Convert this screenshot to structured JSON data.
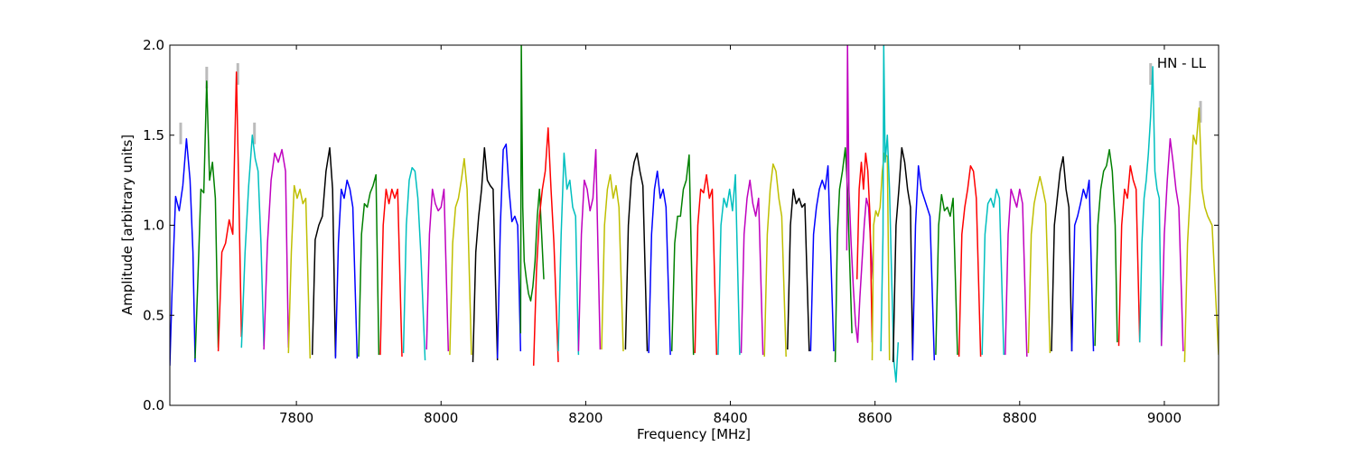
{
  "chart_data": {
    "type": "line",
    "title": "",
    "xlabel": "Frequency [MHz]",
    "ylabel": "Amplitude [arbitrary units]",
    "annotation": "HN - LL",
    "xlim": [
      7625,
      9075
    ],
    "ylim": [
      0.0,
      2.0
    ],
    "xticks": [
      7800,
      8000,
      8200,
      8400,
      8600,
      8800,
      9000
    ],
    "yticks": [
      0.0,
      0.5,
      1.0,
      1.5,
      2.0
    ],
    "xtick_labels": [
      "7800",
      "8000",
      "8200",
      "8400",
      "8600",
      "8800",
      "9000"
    ],
    "ytick_labels": [
      "0.0",
      "0.5",
      "1.0",
      "1.5",
      "2.0"
    ],
    "grid": false,
    "legend": "none",
    "background_trace_color": "#bbbbbb",
    "color_cycle": [
      "#0000ff",
      "#008000",
      "#ff0000",
      "#00bfbf",
      "#bf00bf",
      "#bfbf00",
      "#000000"
    ],
    "series": [
      {
        "color": "#0000ff",
        "x": [
          7625,
          7628,
          7633,
          7638,
          7643,
          7648,
          7653,
          7657,
          7660
        ],
        "y": [
          0.22,
          0.62,
          1.16,
          1.08,
          1.22,
          1.48,
          1.25,
          0.85,
          0.24
        ]
      },
      {
        "color": "#008000",
        "x": [
          7660,
          7664,
          7668,
          7672,
          7676,
          7680,
          7684,
          7688,
          7692
        ],
        "y": [
          0.26,
          0.72,
          1.2,
          1.18,
          1.8,
          1.25,
          1.35,
          1.15,
          0.32
        ]
      },
      {
        "color": "#ff0000",
        "x": [
          7692,
          7697,
          7702,
          7707,
          7712,
          7717,
          7720,
          7724
        ],
        "y": [
          0.3,
          0.85,
          0.9,
          1.03,
          0.95,
          1.85,
          1.25,
          0.38
        ]
      },
      {
        "color": "#00bfbf",
        "x": [
          7724,
          7729,
          7734,
          7739,
          7743,
          7747,
          7751,
          7755
        ],
        "y": [
          0.32,
          0.85,
          1.22,
          1.5,
          1.37,
          1.3,
          0.9,
          0.33
        ]
      },
      {
        "color": "#bf00bf",
        "x": [
          7755,
          7760,
          7765,
          7770,
          7775,
          7780,
          7785,
          7789
        ],
        "y": [
          0.31,
          0.9,
          1.25,
          1.4,
          1.35,
          1.42,
          1.3,
          0.32
        ]
      },
      {
        "color": "#bfbf00",
        "x": [
          7789,
          7793,
          7797,
          7801,
          7805,
          7809,
          7813,
          7819
        ],
        "y": [
          0.29,
          0.85,
          1.22,
          1.15,
          1.2,
          1.12,
          1.15,
          0.26
        ]
      },
      {
        "color": "#000000",
        "x": [
          7822,
          7826,
          7831,
          7836,
          7841,
          7846,
          7850,
          7854
        ],
        "y": [
          0.28,
          0.92,
          1.0,
          1.05,
          1.3,
          1.43,
          1.2,
          0.27
        ]
      },
      {
        "color": "#0000ff",
        "x": [
          7854,
          7858,
          7862,
          7866,
          7870,
          7874,
          7878,
          7884
        ],
        "y": [
          0.26,
          0.9,
          1.2,
          1.15,
          1.25,
          1.2,
          1.1,
          0.26
        ]
      },
      {
        "color": "#008000",
        "x": [
          7886,
          7890,
          7894,
          7898,
          7902,
          7906,
          7910,
          7914
        ],
        "y": [
          0.27,
          0.95,
          1.12,
          1.1,
          1.18,
          1.22,
          1.28,
          0.28
        ]
      },
      {
        "color": "#ff0000",
        "x": [
          7916,
          7920,
          7924,
          7928,
          7932,
          7936,
          7940,
          7946
        ],
        "y": [
          0.28,
          1.0,
          1.2,
          1.12,
          1.2,
          1.15,
          1.2,
          0.27
        ]
      },
      {
        "color": "#00bfbf",
        "x": [
          7948,
          7952,
          7956,
          7960,
          7964,
          7968,
          7972,
          7978
        ],
        "y": [
          0.29,
          1.0,
          1.25,
          1.32,
          1.3,
          1.15,
          0.85,
          0.25
        ]
      },
      {
        "color": "#bf00bf",
        "x": [
          7980,
          7984,
          7988,
          7992,
          7996,
          8000,
          8004,
          8010
        ],
        "y": [
          0.31,
          0.95,
          1.2,
          1.12,
          1.08,
          1.1,
          1.2,
          0.3
        ]
      },
      {
        "color": "#bfbf00",
        "x": [
          8012,
          8016,
          8020,
          8024,
          8028,
          8032,
          8036,
          8042
        ],
        "y": [
          0.28,
          0.9,
          1.1,
          1.15,
          1.25,
          1.37,
          1.2,
          0.28
        ]
      },
      {
        "color": "#000000",
        "x": [
          8044,
          8048,
          8052,
          8056,
          8060,
          8064,
          8068,
          8072,
          8078
        ],
        "y": [
          0.24,
          0.85,
          1.05,
          1.2,
          1.43,
          1.25,
          1.22,
          1.2,
          0.25
        ]
      },
      {
        "color": "#0000ff",
        "x": [
          8078,
          8082,
          8086,
          8090,
          8094,
          8098,
          8102,
          8106,
          8110
        ],
        "y": [
          0.26,
          1.0,
          1.42,
          1.45,
          1.2,
          1.02,
          1.05,
          1.0,
          0.3
        ]
      },
      {
        "color": "#008000",
        "x": [
          8110,
          8111,
          8113,
          8115,
          8118,
          8121,
          8124,
          8127,
          8130,
          8133,
          8136,
          8139,
          8142
        ],
        "y": [
          0.4,
          2.0,
          1.1,
          0.8,
          0.7,
          0.62,
          0.58,
          0.66,
          0.8,
          1.05,
          1.2,
          0.95,
          0.7
        ]
      },
      {
        "color": "#ff0000",
        "x": [
          8128,
          8132,
          8136,
          8140,
          8144,
          8148,
          8152,
          8156,
          8162
        ],
        "y": [
          0.22,
          0.75,
          1.05,
          1.2,
          1.3,
          1.54,
          1.2,
          0.9,
          0.24
        ]
      },
      {
        "color": "#00bfbf",
        "x": [
          8162,
          8166,
          8170,
          8174,
          8178,
          8182,
          8186,
          8190
        ],
        "y": [
          0.3,
          0.95,
          1.4,
          1.2,
          1.25,
          1.1,
          1.05,
          0.28
        ]
      },
      {
        "color": "#bf00bf",
        "x": [
          8190,
          8194,
          8198,
          8202,
          8206,
          8210,
          8214,
          8220
        ],
        "y": [
          0.3,
          0.95,
          1.25,
          1.2,
          1.08,
          1.15,
          1.42,
          0.31
        ]
      },
      {
        "color": "#bfbf00",
        "x": [
          8222,
          8226,
          8230,
          8234,
          8238,
          8242,
          8246,
          8252
        ],
        "y": [
          0.31,
          1.0,
          1.2,
          1.28,
          1.15,
          1.22,
          1.1,
          0.3
        ]
      },
      {
        "color": "#000000",
        "x": [
          8255,
          8259,
          8263,
          8267,
          8271,
          8275,
          8279,
          8285
        ],
        "y": [
          0.31,
          1.0,
          1.25,
          1.35,
          1.4,
          1.3,
          1.22,
          0.3
        ]
      },
      {
        "color": "#0000ff",
        "x": [
          8287,
          8291,
          8295,
          8299,
          8303,
          8307,
          8311,
          8317
        ],
        "y": [
          0.29,
          0.95,
          1.2,
          1.3,
          1.15,
          1.2,
          1.1,
          0.28
        ]
      },
      {
        "color": "#008000",
        "x": [
          8319,
          8323,
          8327,
          8331,
          8335,
          8339,
          8343,
          8349
        ],
        "y": [
          0.3,
          0.9,
          1.05,
          1.05,
          1.2,
          1.25,
          1.39,
          0.28
        ]
      },
      {
        "color": "#ff0000",
        "x": [
          8351,
          8355,
          8359,
          8363,
          8367,
          8371,
          8375,
          8381
        ],
        "y": [
          0.29,
          1.0,
          1.2,
          1.18,
          1.28,
          1.15,
          1.2,
          0.28
        ]
      },
      {
        "color": "#00bfbf",
        "x": [
          8383,
          8387,
          8391,
          8395,
          8399,
          8403,
          8407,
          8413
        ],
        "y": [
          0.28,
          1.0,
          1.15,
          1.1,
          1.2,
          1.08,
          1.28,
          0.28
        ]
      },
      {
        "color": "#bf00bf",
        "x": [
          8415,
          8419,
          8423,
          8427,
          8431,
          8435,
          8439,
          8445
        ],
        "y": [
          0.29,
          0.95,
          1.15,
          1.25,
          1.12,
          1.05,
          1.15,
          0.28
        ]
      },
      {
        "color": "#bfbf00",
        "x": [
          8447,
          8451,
          8455,
          8459,
          8463,
          8467,
          8471,
          8477
        ],
        "y": [
          0.27,
          0.95,
          1.2,
          1.34,
          1.3,
          1.15,
          1.05,
          0.27
        ]
      },
      {
        "color": "#000000",
        "x": [
          8479,
          8483,
          8487,
          8491,
          8495,
          8499,
          8503,
          8509
        ],
        "y": [
          0.31,
          1.0,
          1.2,
          1.12,
          1.15,
          1.1,
          1.12,
          0.3
        ]
      },
      {
        "color": "#0000ff",
        "x": [
          8511,
          8515,
          8519,
          8523,
          8527,
          8531,
          8535,
          8543
        ],
        "y": [
          0.3,
          0.95,
          1.1,
          1.2,
          1.25,
          1.2,
          1.33,
          0.3
        ]
      },
      {
        "color": "#008000",
        "x": [
          8545,
          8548,
          8551,
          8555,
          8559,
          8562,
          8565,
          8568
        ],
        "y": [
          0.24,
          0.95,
          1.2,
          1.3,
          1.43,
          1.2,
          0.8,
          0.4
        ]
      },
      {
        "color": "#bf00bf",
        "x": [
          8561,
          8562,
          8564,
          8567,
          8570,
          8573,
          8576,
          8579,
          8582,
          8585,
          8588,
          8591,
          8594,
          8597
        ],
        "y": [
          0.86,
          2.0,
          1.2,
          0.9,
          0.65,
          0.45,
          0.35,
          0.6,
          0.8,
          1.0,
          1.15,
          1.1,
          0.9,
          0.7
        ]
      },
      {
        "color": "#ff0000",
        "x": [
          8575,
          8578,
          8581,
          8584,
          8587,
          8590,
          8593,
          8596
        ],
        "y": [
          0.7,
          1.2,
          1.35,
          1.2,
          1.4,
          1.3,
          1.05,
          0.35
        ]
      },
      {
        "color": "#bfbf00",
        "x": [
          8596,
          8598,
          8601,
          8604,
          8607,
          8610,
          8613,
          8617,
          8620
        ],
        "y": [
          0.25,
          1.0,
          1.08,
          1.05,
          1.1,
          1.3,
          1.4,
          1.38,
          0.25
        ]
      },
      {
        "color": "#00bfbf",
        "x": [
          8608,
          8611,
          8612,
          8614,
          8617,
          8620,
          8623,
          8626,
          8629,
          8632
        ],
        "y": [
          0.3,
          0.95,
          2.0,
          1.35,
          1.5,
          1.2,
          0.7,
          0.25,
          0.13,
          0.35
        ]
      },
      {
        "color": "#000000",
        "x": [
          8625,
          8629,
          8633,
          8637,
          8641,
          8645,
          8649,
          8652
        ],
        "y": [
          0.24,
          1.0,
          1.2,
          1.43,
          1.35,
          1.2,
          1.1,
          0.25
        ]
      },
      {
        "color": "#0000ff",
        "x": [
          8652,
          8656,
          8660,
          8664,
          8668,
          8672,
          8676,
          8682
        ],
        "y": [
          0.25,
          1.0,
          1.33,
          1.2,
          1.15,
          1.1,
          1.05,
          0.25
        ]
      },
      {
        "color": "#008000",
        "x": [
          8684,
          8688,
          8692,
          8696,
          8700,
          8704,
          8708,
          8714
        ],
        "y": [
          0.28,
          1.0,
          1.17,
          1.08,
          1.1,
          1.05,
          1.15,
          0.28
        ]
      },
      {
        "color": "#ff0000",
        "x": [
          8716,
          8720,
          8724,
          8728,
          8732,
          8736,
          8740,
          8746
        ],
        "y": [
          0.27,
          0.95,
          1.1,
          1.2,
          1.33,
          1.3,
          1.15,
          0.27
        ]
      },
      {
        "color": "#00bfbf",
        "x": [
          8748,
          8752,
          8756,
          8760,
          8764,
          8768,
          8772,
          8778
        ],
        "y": [
          0.28,
          0.95,
          1.12,
          1.15,
          1.1,
          1.2,
          1.15,
          0.28
        ]
      },
      {
        "color": "#bf00bf",
        "x": [
          8780,
          8784,
          8788,
          8792,
          8796,
          8800,
          8804,
          8810
        ],
        "y": [
          0.28,
          0.95,
          1.2,
          1.15,
          1.1,
          1.2,
          1.12,
          0.27
        ]
      },
      {
        "color": "#bfbf00",
        "x": [
          8812,
          8816,
          8820,
          8824,
          8828,
          8832,
          8836,
          8842
        ],
        "y": [
          0.29,
          0.95,
          1.12,
          1.2,
          1.27,
          1.2,
          1.12,
          0.29
        ]
      },
      {
        "color": "#000000",
        "x": [
          8844,
          8848,
          8852,
          8856,
          8860,
          8864,
          8868,
          8872
        ],
        "y": [
          0.3,
          1.0,
          1.15,
          1.3,
          1.38,
          1.2,
          1.1,
          0.3
        ]
      },
      {
        "color": "#0000ff",
        "x": [
          8872,
          8876,
          8880,
          8884,
          8888,
          8892,
          8896,
          8902
        ],
        "y": [
          0.3,
          1.0,
          1.05,
          1.12,
          1.2,
          1.15,
          1.25,
          0.3
        ]
      },
      {
        "color": "#008000",
        "x": [
          8904,
          8908,
          8912,
          8916,
          8920,
          8924,
          8928,
          8932,
          8935
        ],
        "y": [
          0.33,
          1.0,
          1.2,
          1.3,
          1.33,
          1.42,
          1.3,
          1.0,
          0.35
        ]
      },
      {
        "color": "#ff0000",
        "x": [
          8937,
          8941,
          8945,
          8949,
          8953,
          8957,
          8961,
          8966
        ],
        "y": [
          0.33,
          1.0,
          1.2,
          1.15,
          1.33,
          1.25,
          1.2,
          0.35
        ]
      },
      {
        "color": "#00bfbf",
        "x": [
          8966,
          8969,
          8972,
          8975,
          8978,
          8981,
          8984,
          8987,
          8990,
          8993,
          8996
        ],
        "y": [
          0.35,
          0.9,
          1.15,
          1.25,
          1.4,
          1.6,
          1.88,
          1.3,
          1.2,
          1.15,
          0.33
        ]
      },
      {
        "color": "#bf00bf",
        "x": [
          8996,
          9000,
          9004,
          9008,
          9012,
          9016,
          9020,
          9026
        ],
        "y": [
          0.33,
          0.95,
          1.25,
          1.48,
          1.35,
          1.2,
          1.1,
          0.3
        ]
      },
      {
        "color": "#bfbf00",
        "x": [
          9028,
          9032,
          9036,
          9040,
          9044,
          9048,
          9052,
          9056,
          9060,
          9066,
          9075
        ],
        "y": [
          0.24,
          0.9,
          1.2,
          1.5,
          1.45,
          1.65,
          1.2,
          1.1,
          1.05,
          1.0,
          0.28
        ]
      }
    ],
    "background_spikes": [
      {
        "x": 7640,
        "y": 1.57
      },
      {
        "x": 7676,
        "y": 1.88
      },
      {
        "x": 7719,
        "y": 1.9
      },
      {
        "x": 7742,
        "y": 1.57
      },
      {
        "x": 8981,
        "y": 1.9
      },
      {
        "x": 9050,
        "y": 1.69
      }
    ]
  }
}
